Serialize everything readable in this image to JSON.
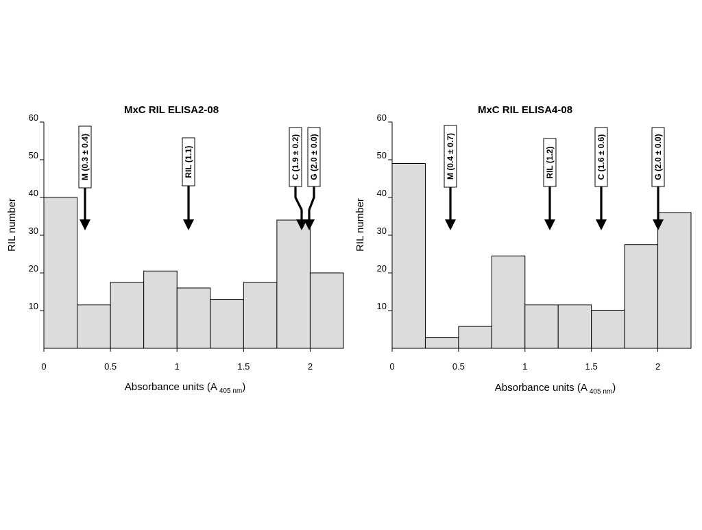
{
  "chart_data": [
    {
      "type": "bar",
      "title": "MxC RIL ELISA2-08",
      "xlabel": "Absorbance units (A",
      "xlabel_sub": "405 nm",
      "xlabel_close": ")",
      "ylabel": "RIL number",
      "xlim": [
        0,
        2.25
      ],
      "ylim": [
        0,
        60
      ],
      "bin_width": 0.25,
      "x_ticks": [
        0,
        0.5,
        1,
        1.5,
        2
      ],
      "x_tick_labels": [
        "0",
        "0.5",
        "1",
        "1.5",
        "2"
      ],
      "y_ticks": [
        10,
        20,
        30,
        40,
        50,
        60
      ],
      "y_tick_labels": [
        "10",
        "20",
        "30",
        "40",
        "50",
        "60"
      ],
      "bin_starts": [
        0,
        0.25,
        0.5,
        0.75,
        1.0,
        1.25,
        1.5,
        1.75,
        2.0
      ],
      "values": [
        40,
        11.5,
        17.5,
        20.5,
        16,
        13,
        17.5,
        34,
        20
      ],
      "bar_color": "#dcdcdc",
      "annotations": [
        {
          "label": "M (0.3 ± 0.4)",
          "x": 0.3
        },
        {
          "label": "RIL (1.1)",
          "x": 1.1
        },
        {
          "label": "C (1.9 ± 0.2)",
          "x": 1.9
        },
        {
          "label": "G (2.0 ± 0.0)",
          "x": 2.0
        }
      ]
    },
    {
      "type": "bar",
      "title": "MxC RIL ELISA4-08",
      "xlabel": "Absorbance units (A",
      "xlabel_sub": "405 nm",
      "xlabel_close": ")",
      "ylabel": "RIL number",
      "xlim": [
        0,
        2.25
      ],
      "ylim": [
        0,
        60
      ],
      "bin_width": 0.25,
      "x_ticks": [
        0,
        0.5,
        1,
        1.5,
        2
      ],
      "x_tick_labels": [
        "0",
        "0.5",
        "1",
        "1.5",
        "2"
      ],
      "y_ticks": [
        10,
        20,
        30,
        40,
        50,
        60
      ],
      "y_tick_labels": [
        "10",
        "20",
        "30",
        "40",
        "50",
        "60"
      ],
      "bin_starts": [
        0,
        0.25,
        0.5,
        0.75,
        1.0,
        1.25,
        1.5,
        1.75,
        2.0
      ],
      "values": [
        49,
        2.8,
        5.8,
        24.5,
        11.5,
        11.5,
        10.1,
        27.5,
        36
      ],
      "bar_color": "#dcdcdc",
      "annotations": [
        {
          "label": "M (0.4 ± 0.7)",
          "x": 0.45
        },
        {
          "label": "RIL (1.2)",
          "x": 1.2
        },
        {
          "label": "C (1.6 ± 0.6)",
          "x": 1.6
        },
        {
          "label": "G (2.0 ± 0.0)",
          "x": 2.0
        }
      ]
    }
  ]
}
